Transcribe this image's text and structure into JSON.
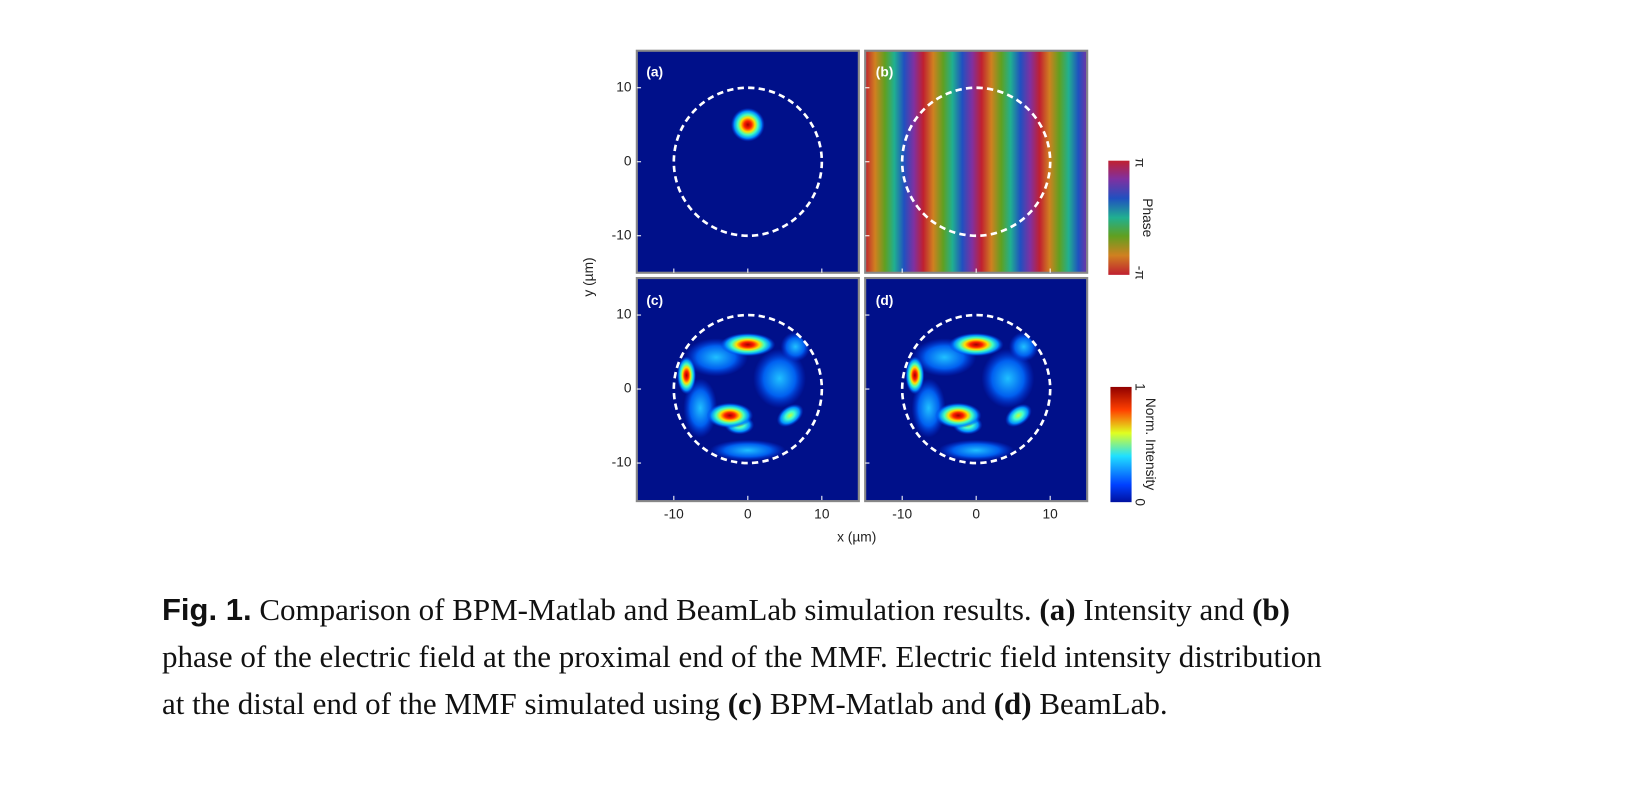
{
  "figure": {
    "panels": [
      {
        "label": "(a)"
      },
      {
        "label": "(b)"
      },
      {
        "label": "(c)"
      },
      {
        "label": "(d)"
      }
    ],
    "xlim": [
      -15,
      15
    ],
    "ylim": [
      -15,
      15
    ],
    "xticks": [
      -10,
      0,
      10
    ],
    "yticks": [
      -10,
      0,
      10
    ],
    "xlabel": "x (µm)",
    "ylabel": "y (µm)",
    "phase_colorbar": {
      "label": "Phase",
      "max": "π",
      "min": "-π"
    },
    "intensity_colorbar": {
      "label": "Norm. Intensity",
      "lim": [
        0,
        1
      ],
      "ticks": [
        0,
        1
      ]
    }
  },
  "caption": {
    "label": "Fig. 1.",
    "segments": [
      "Comparison of BPM-Matlab and BeamLab simulation results.",
      "(a)",
      "Intensity and",
      "(b)",
      "phase of the electric field at the proximal end of the MMF. Electric field intensity distribution",
      "at the distal end of the MMF simulated using",
      "(c)",
      "BPM-Matlab and",
      "(d)",
      "BeamLab."
    ]
  }
}
